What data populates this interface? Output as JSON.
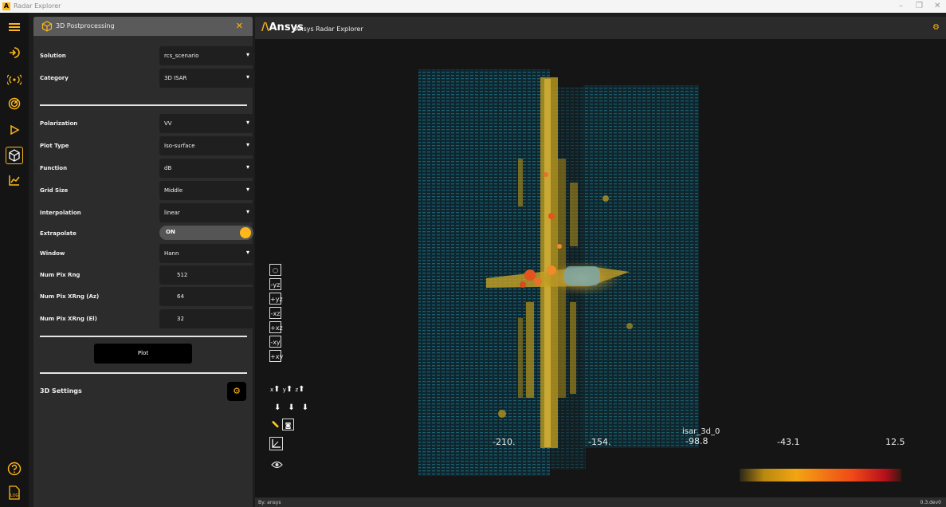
{
  "window": {
    "title": "Radar Explorer",
    "logo_letter": "A",
    "controls": [
      "–",
      "❐",
      "✕"
    ]
  },
  "rail": {
    "icons": [
      "menu-icon",
      "input-icon",
      "antenna-icon",
      "radar-icon",
      "play-icon",
      "cube-icon",
      "chart-icon",
      "help-icon",
      "log-icon"
    ],
    "active": "cube-icon"
  },
  "panel": {
    "title": "3D Postprocessing",
    "close": "✕",
    "fields": [
      {
        "label": "Solution",
        "value": "rcs_scenario",
        "type": "select"
      },
      {
        "label": "Category",
        "value": "3D ISAR",
        "type": "select"
      },
      {
        "label": "Polarization",
        "value": "VV",
        "type": "select"
      },
      {
        "label": "Plot Type",
        "value": "Iso-surface",
        "type": "select"
      },
      {
        "label": "Function",
        "value": "dB",
        "type": "select"
      },
      {
        "label": "Grid Size",
        "value": "Middle",
        "type": "select"
      },
      {
        "label": "Interpolation",
        "value": "linear",
        "type": "select"
      },
      {
        "label": "Extrapolate",
        "value": "ON",
        "type": "toggle"
      },
      {
        "label": "Window",
        "value": "Hann",
        "type": "select"
      },
      {
        "label": "Num Pix Rng",
        "value": "512",
        "type": "input"
      },
      {
        "label": "Num Pix XRng (Az)",
        "value": "64",
        "type": "input"
      },
      {
        "label": "Num Pix XRng (El)",
        "value": "32",
        "type": "input"
      }
    ],
    "plot_button": "Plot",
    "settings_label": "3D Settings"
  },
  "viewer": {
    "brand": "Ansys",
    "app_title": "Ansys Radar Explorer",
    "view_buttons": [
      "-yz",
      "+yz",
      "-xz",
      "+xz",
      "-xy",
      "+xy"
    ],
    "axis_labels": [
      "x",
      "y",
      "z"
    ],
    "colorbar": {
      "title": "isar_3d_0",
      "ticks": [
        "-210.",
        "-154.",
        "-98.8",
        "-43.1",
        "12.5"
      ],
      "colors": [
        "#b88810",
        "#f3a512",
        "#ef4818",
        "#b5101c"
      ]
    }
  },
  "status": {
    "user": "By: ansys",
    "version": "0.3.dev0"
  }
}
